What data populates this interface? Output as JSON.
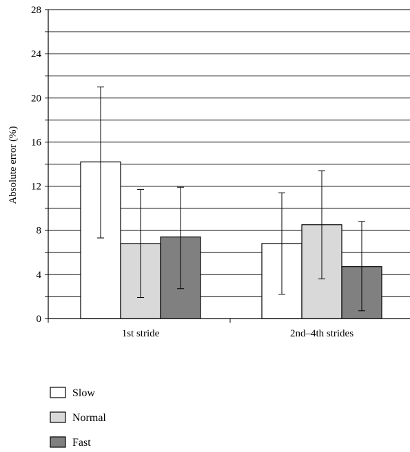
{
  "chart_data": {
    "type": "bar",
    "title": "",
    "xlabel": "",
    "ylabel": "Absolute error (%)",
    "ylim": [
      0,
      28
    ],
    "yticks": [
      0,
      4,
      8,
      12,
      16,
      20,
      24,
      28
    ],
    "grid_step": 2,
    "grid": true,
    "legend_position": "bottom-left",
    "categories": [
      "1st stride",
      "2nd–4th strides"
    ],
    "series": [
      {
        "name": "Slow",
        "color": "#ffffff",
        "values": [
          14.2,
          6.8
        ],
        "err_low": [
          7.3,
          2.2
        ],
        "err_high": [
          21.0,
          11.4
        ]
      },
      {
        "name": "Normal",
        "color": "#d9d9d9",
        "values": [
          6.8,
          8.5
        ],
        "err_low": [
          1.9,
          3.6
        ],
        "err_high": [
          11.7,
          13.4
        ]
      },
      {
        "name": "Fast",
        "color": "#808080",
        "values": [
          7.4,
          4.7
        ],
        "err_low": [
          2.7,
          0.7
        ],
        "err_high": [
          11.9,
          8.8
        ]
      }
    ]
  }
}
